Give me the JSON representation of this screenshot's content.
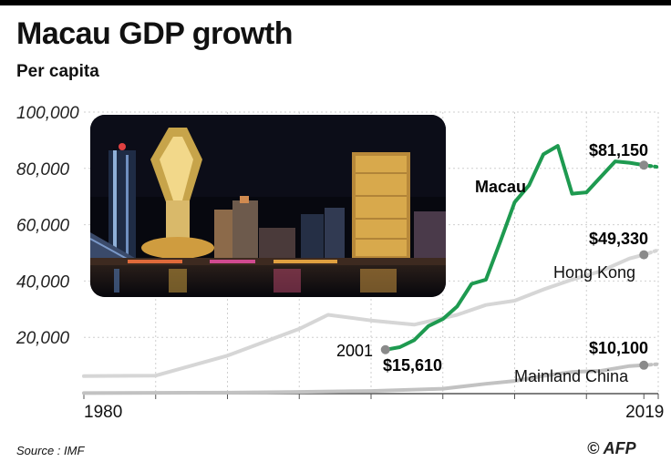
{
  "header": {
    "title": "Macau GDP growth",
    "subtitle": "Per capita"
  },
  "footer": {
    "source": "Source : IMF",
    "credit": "© AFP"
  },
  "photo": {
    "description_icon": "macau-skyline-photo"
  },
  "colors": {
    "macau": "#1e9a50",
    "hong_kong": "#d6d6d6",
    "mainland_china": "#c2c2c2",
    "grid": "#cfcfcf",
    "endpoint_dot": "#8a8a8a"
  },
  "chart_data": {
    "type": "line",
    "title": "Macau GDP growth",
    "subtitle": "Per capita",
    "xlim": [
      1980,
      2020
    ],
    "ylim": [
      0,
      100000
    ],
    "x_tick_labels": [
      "1980",
      "2019"
    ],
    "y_tick_labels": [
      "20,000",
      "40,000",
      "60,000",
      "80,000",
      "100,000"
    ],
    "y_ticks": [
      20000,
      40000,
      60000,
      80000,
      100000
    ],
    "grid": true,
    "series": [
      {
        "name": "Macau",
        "color": "#1e9a50",
        "x": [
          2001,
          2002,
          2003,
          2004,
          2005,
          2006,
          2007,
          2008,
          2009,
          2010,
          2011,
          2012,
          2013,
          2014,
          2015,
          2016,
          2017,
          2018,
          2019,
          2020
        ],
        "y": [
          15610,
          16500,
          19000,
          24000,
          26500,
          31000,
          39000,
          40500,
          54000,
          68000,
          74000,
          85000,
          88000,
          71000,
          71500,
          77000,
          82500,
          82000,
          81150,
          80500
        ],
        "start_label": "2001",
        "start_value_label": "$15,610",
        "end_value_label": "$81,150"
      },
      {
        "name": "Hong Kong",
        "color": "#d6d6d6",
        "x": [
          1980,
          1985,
          1990,
          1995,
          1997,
          2000,
          2003,
          2006,
          2008,
          2010,
          2012,
          2014,
          2016,
          2018,
          2019,
          2020
        ],
        "y": [
          6200,
          6400,
          13500,
          23000,
          28000,
          26000,
          24500,
          28000,
          31500,
          33000,
          37000,
          40500,
          43500,
          48000,
          49330,
          51000
        ],
        "end_value_label": "$49,330"
      },
      {
        "name": "Mainland China",
        "color": "#c2c2c2",
        "x": [
          1980,
          1985,
          1990,
          1995,
          2000,
          2005,
          2008,
          2010,
          2012,
          2014,
          2016,
          2018,
          2019,
          2020
        ],
        "y": [
          200,
          300,
          350,
          600,
          950,
          1750,
          3500,
          4500,
          6300,
          7700,
          8100,
          9800,
          10100,
          10500
        ],
        "end_value_label": "$10,100"
      }
    ]
  }
}
